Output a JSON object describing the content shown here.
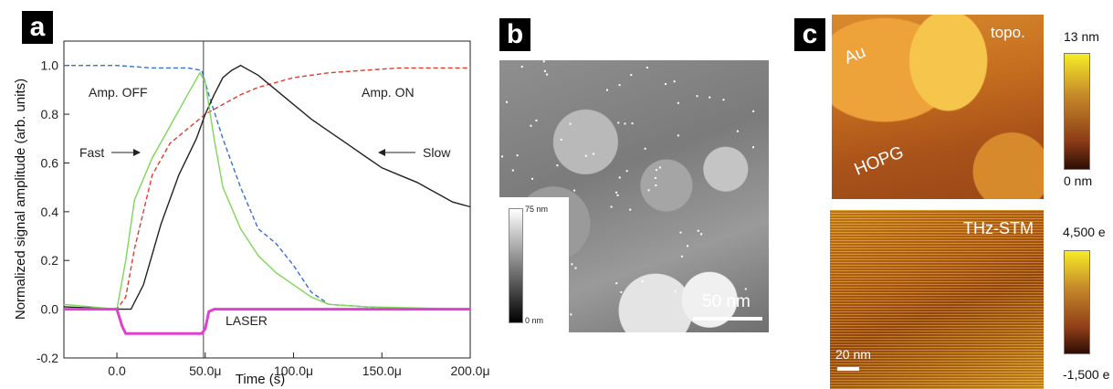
{
  "panels": {
    "a": {
      "letter": "a",
      "chart_data": {
        "type": "line",
        "xlabel": "Time (s)",
        "ylabel": "Normalized signal amplitude (arb. units)",
        "xlim": [
          -30,
          200
        ],
        "ylim": [
          -0.2,
          1.1
        ],
        "x_tick_labels": [
          "0.0",
          "50.0μ",
          "100.0μ",
          "150.0μ",
          "200.0μ"
        ],
        "x_ticks": [
          0,
          50,
          100,
          150,
          200
        ],
        "y_tick_labels": [
          "-0.2",
          "0.0",
          "0.2",
          "0.4",
          "0.6",
          "0.8",
          "1.0"
        ],
        "y_ticks": [
          -0.2,
          0.0,
          0.2,
          0.4,
          0.6,
          0.8,
          1.0
        ],
        "vertical_line_x": 49,
        "series": [
          {
            "color": "#3c6fd0",
            "dash": "dashed",
            "x": [
              -30,
              0,
              20,
              40,
              48,
              52,
              60,
              70,
              80,
              90,
              100,
              110,
              120,
              140,
              160,
              200
            ],
            "y": [
              1.0,
              1.0,
              0.99,
              0.99,
              0.98,
              0.88,
              0.7,
              0.5,
              0.33,
              0.27,
              0.18,
              0.07,
              0.02,
              0.01,
              0.0,
              0.0
            ]
          },
          {
            "color": "#e23b2e",
            "dash": "dashed",
            "x": [
              -30,
              0,
              5,
              10,
              20,
              30,
              40,
              50,
              60,
              70,
              80,
              100,
              120,
              140,
              160,
              180,
              200
            ],
            "y": [
              0.0,
              0.0,
              0.05,
              0.25,
              0.55,
              0.68,
              0.74,
              0.8,
              0.84,
              0.88,
              0.91,
              0.95,
              0.97,
              0.98,
              0.99,
              0.99,
              0.99
            ]
          },
          {
            "color": "#222222",
            "dash": "solid",
            "x": [
              -30,
              0,
              8,
              15,
              25,
              35,
              45,
              50,
              55,
              60,
              65,
              70,
              80,
              90,
              100,
              110,
              120,
              130,
              140,
              150,
              160,
              170,
              180,
              190,
              200
            ],
            "y": [
              0.01,
              0.0,
              0.0,
              0.1,
              0.35,
              0.55,
              0.7,
              0.8,
              0.88,
              0.95,
              0.98,
              1.0,
              0.96,
              0.9,
              0.84,
              0.78,
              0.73,
              0.68,
              0.63,
              0.58,
              0.55,
              0.52,
              0.48,
              0.44,
              0.42
            ]
          },
          {
            "color": "#7fd65a",
            "dash": "solid",
            "x": [
              -30,
              0,
              5,
              10,
              20,
              30,
              40,
              47,
              50,
              55,
              60,
              70,
              80,
              90,
              100,
              110,
              120,
              140,
              200
            ],
            "y": [
              0.02,
              0.0,
              0.2,
              0.45,
              0.62,
              0.75,
              0.88,
              0.97,
              0.93,
              0.7,
              0.5,
              0.33,
              0.22,
              0.15,
              0.1,
              0.05,
              0.02,
              0.01,
              0.0
            ]
          },
          {
            "color": "#e040d0",
            "dash": "solid",
            "thick": true,
            "x": [
              -30,
              0,
              3,
              5,
              48,
              50,
              52,
              55,
              200
            ],
            "y": [
              0.0,
              0.0,
              -0.07,
              -0.1,
              -0.1,
              -0.08,
              -0.01,
              0.0,
              0.0
            ]
          }
        ],
        "annotations": {
          "amp_off": "Amp. OFF",
          "amp_on": "Amp. ON",
          "fast": "Fast",
          "slow": "Slow",
          "laser": "LASER"
        }
      }
    },
    "b": {
      "letter": "b",
      "scale_top": "75 nm",
      "scale_bottom": "0 nm",
      "scalebar_label": "50 nm"
    },
    "c": {
      "letter": "c",
      "top": {
        "label_au": "Au",
        "label_hopg": "HOPG",
        "label_mode": "topo.",
        "cbar_max": "13 nm",
        "cbar_min": "0 nm"
      },
      "bottom": {
        "label_mode": "THz-STM",
        "cbar_max": "4,500 e",
        "cbar_min": "-1,500 e",
        "scalebar_label": "20 nm"
      }
    }
  }
}
